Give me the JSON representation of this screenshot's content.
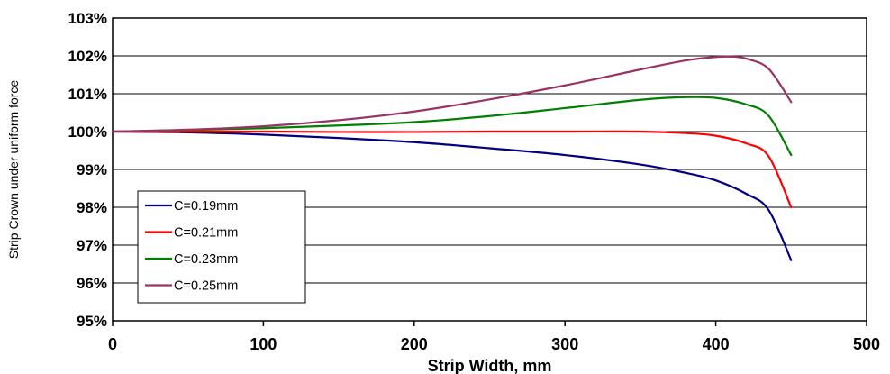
{
  "chart_data": {
    "type": "line",
    "title": "",
    "xlabel": "Strip Width, mm",
    "ylabel": "Strip Crown under uniform force",
    "xlim": [
      0,
      500
    ],
    "ylim": [
      95,
      103
    ],
    "x_ticks": [
      "0",
      "100",
      "200",
      "300",
      "400",
      "500"
    ],
    "y_ticks": [
      "95%",
      "96%",
      "97%",
      "98%",
      "99%",
      "100%",
      "101%",
      "102%",
      "103%"
    ],
    "grid": "horizontal",
    "legend_position": "bottom-left",
    "series": [
      {
        "name": "C=0.19mm",
        "color": "#000080",
        "x": [
          0,
          50,
          100,
          150,
          200,
          250,
          300,
          350,
          380,
          400,
          420,
          435,
          450
        ],
        "y": [
          100.0,
          99.98,
          99.92,
          99.83,
          99.72,
          99.56,
          99.38,
          99.13,
          98.91,
          98.71,
          98.36,
          97.93,
          96.6
        ]
      },
      {
        "name": "C=0.21mm",
        "color": "#ff0000",
        "x": [
          0,
          50,
          100,
          150,
          200,
          250,
          300,
          350,
          380,
          400,
          420,
          435,
          450
        ],
        "y": [
          100.0,
          100.0,
          100.0,
          99.99,
          99.99,
          100.0,
          100.0,
          100.0,
          99.96,
          99.89,
          99.69,
          99.35,
          98.0
        ]
      },
      {
        "name": "C=0.23mm",
        "color": "#008000",
        "x": [
          0,
          50,
          100,
          150,
          200,
          250,
          300,
          350,
          380,
          400,
          420,
          435,
          450
        ],
        "y": [
          100.0,
          100.04,
          100.09,
          100.16,
          100.25,
          100.41,
          100.62,
          100.84,
          100.91,
          100.89,
          100.72,
          100.42,
          99.38
        ]
      },
      {
        "name": "C=0.25mm",
        "color": "#993366",
        "x": [
          0,
          50,
          100,
          150,
          200,
          250,
          300,
          350,
          380,
          400,
          410,
          420,
          435,
          450
        ],
        "y": [
          100.0,
          100.05,
          100.14,
          100.3,
          100.53,
          100.85,
          101.22,
          101.64,
          101.88,
          101.97,
          101.98,
          101.93,
          101.66,
          100.78
        ]
      }
    ]
  }
}
